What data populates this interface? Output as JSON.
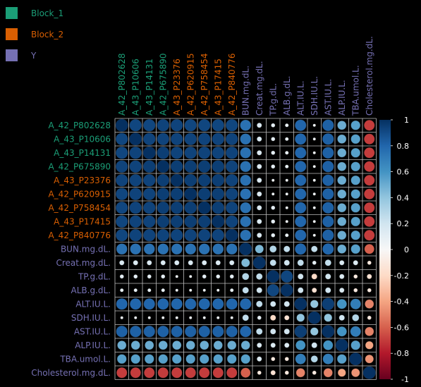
{
  "chart_data": {
    "type": "heatmap",
    "subtype": "correlation-circle-matrix",
    "legend": [
      {
        "label": "Block_1",
        "color": "#1b9e77"
      },
      {
        "label": "Block_2",
        "color": "#d95f02"
      },
      {
        "label": "Y",
        "color": "#7570b3"
      }
    ],
    "variables": [
      {
        "name": "A_42_P802628",
        "group": "Block_1"
      },
      {
        "name": "A_43_P10606",
        "group": "Block_1"
      },
      {
        "name": "A_43_P14131",
        "group": "Block_1"
      },
      {
        "name": "A_42_P675890",
        "group": "Block_1"
      },
      {
        "name": "A_43_P23376",
        "group": "Block_2"
      },
      {
        "name": "A_42_P620915",
        "group": "Block_2"
      },
      {
        "name": "A_42_P758454",
        "group": "Block_2"
      },
      {
        "name": "A_43_P17415",
        "group": "Block_2"
      },
      {
        "name": "A_42_P840776",
        "group": "Block_2"
      },
      {
        "name": "BUN.mg.dL.",
        "group": "Y"
      },
      {
        "name": "Creat.mg.dL.",
        "group": "Y"
      },
      {
        "name": "TP.g.dL.",
        "group": "Y"
      },
      {
        "name": "ALB.g.dL.",
        "group": "Y"
      },
      {
        "name": "ALT.IU.L.",
        "group": "Y"
      },
      {
        "name": "SDH.IU.L.",
        "group": "Y"
      },
      {
        "name": "AST.IU.L.",
        "group": "Y"
      },
      {
        "name": "ALP.IU.L.",
        "group": "Y"
      },
      {
        "name": "TBA.umol.L.",
        "group": "Y"
      },
      {
        "name": "Cholesterol.mg.dL.",
        "group": "Y"
      }
    ],
    "matrix": [
      [
        1.0,
        0.92,
        0.92,
        0.93,
        0.93,
        0.92,
        0.92,
        0.92,
        0.92,
        0.75,
        0.15,
        0.1,
        0.08,
        0.8,
        0.05,
        0.82,
        0.5,
        0.55,
        -0.7
      ],
      [
        0.92,
        1.0,
        0.93,
        0.93,
        0.93,
        0.93,
        0.93,
        0.93,
        0.93,
        0.75,
        0.15,
        0.1,
        0.08,
        0.8,
        0.05,
        0.82,
        0.5,
        0.55,
        -0.7
      ],
      [
        0.92,
        0.93,
        1.0,
        0.95,
        0.93,
        0.93,
        0.93,
        0.93,
        0.93,
        0.75,
        0.15,
        0.1,
        0.08,
        0.8,
        0.05,
        0.82,
        0.5,
        0.55,
        -0.7
      ],
      [
        0.93,
        0.93,
        0.95,
        1.0,
        0.95,
        0.95,
        0.95,
        0.95,
        0.93,
        0.75,
        0.15,
        0.1,
        0.08,
        0.8,
        0.05,
        0.82,
        0.5,
        0.55,
        -0.7
      ],
      [
        0.93,
        0.93,
        0.93,
        0.95,
        1.0,
        0.95,
        0.95,
        0.95,
        0.93,
        0.75,
        0.15,
        0.05,
        0.05,
        0.8,
        0.05,
        0.82,
        0.5,
        0.55,
        -0.7
      ],
      [
        0.92,
        0.93,
        0.93,
        0.95,
        0.95,
        1.0,
        0.95,
        0.95,
        0.93,
        0.75,
        0.15,
        0.05,
        0.05,
        0.8,
        0.05,
        0.82,
        0.5,
        0.55,
        -0.7
      ],
      [
        0.92,
        0.93,
        0.93,
        0.95,
        0.95,
        0.95,
        1.0,
        0.95,
        0.93,
        0.75,
        0.15,
        0.1,
        0.05,
        0.8,
        0.05,
        0.82,
        0.5,
        0.55,
        -0.7
      ],
      [
        0.92,
        0.93,
        0.93,
        0.95,
        0.95,
        0.95,
        0.95,
        1.0,
        0.93,
        0.75,
        0.15,
        0.1,
        0.05,
        0.8,
        0.05,
        0.82,
        0.5,
        0.55,
        -0.7
      ],
      [
        0.92,
        0.93,
        0.93,
        0.93,
        0.93,
        0.93,
        0.93,
        0.93,
        1.0,
        0.75,
        0.15,
        0.1,
        0.08,
        0.8,
        0.05,
        0.82,
        0.5,
        0.55,
        -0.7
      ],
      [
        0.75,
        0.75,
        0.75,
        0.75,
        0.75,
        0.75,
        0.75,
        0.75,
        0.75,
        1.0,
        0.45,
        0.3,
        0.25,
        0.8,
        0.25,
        0.8,
        0.5,
        0.55,
        -0.6
      ],
      [
        0.15,
        0.15,
        0.15,
        0.15,
        0.15,
        0.15,
        0.15,
        0.15,
        0.15,
        0.45,
        1.0,
        0.25,
        0.2,
        0.25,
        0.1,
        0.25,
        0.15,
        0.15,
        -0.1
      ],
      [
        0.1,
        0.1,
        0.1,
        0.1,
        0.05,
        0.05,
        0.1,
        0.1,
        0.1,
        0.3,
        0.25,
        1.0,
        0.92,
        0.2,
        -0.2,
        0.2,
        0.15,
        -0.1,
        -0.15
      ],
      [
        0.08,
        0.08,
        0.08,
        0.08,
        0.05,
        0.05,
        0.05,
        0.05,
        0.08,
        0.25,
        0.2,
        0.92,
        1.0,
        0.2,
        -0.15,
        0.2,
        0.15,
        -0.1,
        -0.1
      ],
      [
        0.8,
        0.8,
        0.8,
        0.8,
        0.8,
        0.8,
        0.8,
        0.8,
        0.8,
        0.8,
        0.25,
        0.2,
        0.2,
        1.0,
        0.4,
        0.95,
        0.6,
        0.7,
        -0.5
      ],
      [
        0.05,
        0.05,
        0.05,
        0.05,
        0.05,
        0.05,
        0.05,
        0.05,
        0.05,
        0.25,
        0.1,
        -0.2,
        -0.15,
        0.4,
        1.0,
        0.4,
        0.2,
        0.3,
        -0.1
      ],
      [
        0.82,
        0.82,
        0.82,
        0.82,
        0.82,
        0.82,
        0.82,
        0.82,
        0.82,
        0.8,
        0.25,
        0.2,
        0.2,
        0.95,
        0.4,
        1.0,
        0.6,
        0.7,
        -0.5
      ],
      [
        0.5,
        0.5,
        0.5,
        0.5,
        0.5,
        0.5,
        0.5,
        0.5,
        0.5,
        0.5,
        0.15,
        0.15,
        0.15,
        0.6,
        0.2,
        0.6,
        1.0,
        0.55,
        -0.4
      ],
      [
        0.55,
        0.55,
        0.55,
        0.55,
        0.55,
        0.55,
        0.55,
        0.55,
        0.55,
        0.55,
        0.15,
        -0.1,
        -0.1,
        0.7,
        0.3,
        0.7,
        0.55,
        1.0,
        -0.45
      ],
      [
        -0.7,
        -0.7,
        -0.7,
        -0.7,
        -0.7,
        -0.7,
        -0.7,
        -0.7,
        -0.7,
        -0.6,
        -0.1,
        -0.15,
        -0.1,
        -0.5,
        -0.1,
        -0.5,
        -0.4,
        -0.45,
        1.0
      ]
    ],
    "colorbar": {
      "range": [
        -1,
        1
      ],
      "ticks": [
        {
          "v": 1,
          "label": "1"
        },
        {
          "v": 0.8,
          "label": "0.8"
        },
        {
          "v": 0.6,
          "label": "0.6"
        },
        {
          "v": 0.4,
          "label": "0.4"
        },
        {
          "v": 0.2,
          "label": "0.2"
        },
        {
          "v": 0,
          "label": "0"
        },
        {
          "v": -0.2,
          "label": "-0.2"
        },
        {
          "v": -0.4,
          "label": "-0.4"
        },
        {
          "v": -0.6,
          "label": "-0.6"
        },
        {
          "v": -0.8,
          "label": "-0.8"
        },
        {
          "v": -1,
          "label": "-1"
        }
      ]
    }
  }
}
